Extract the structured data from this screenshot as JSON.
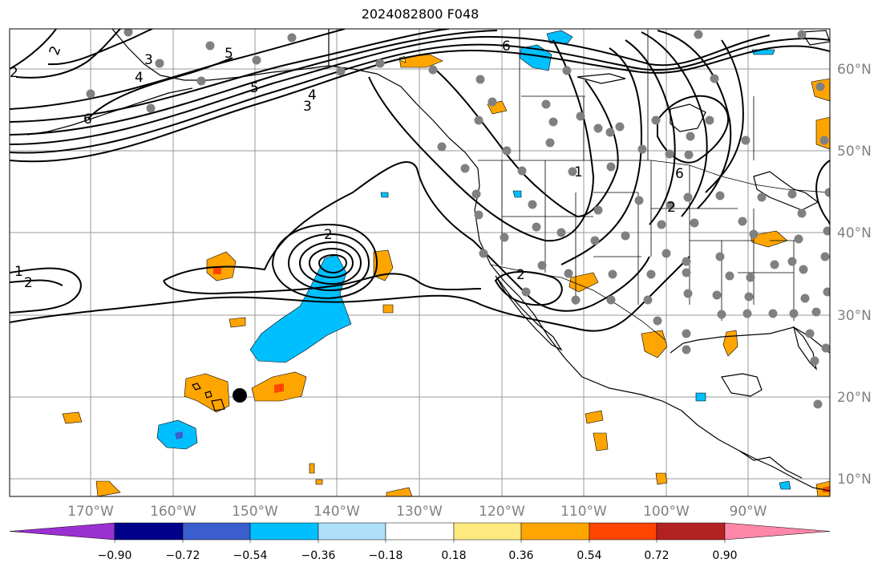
{
  "title": "2024082800 F048",
  "map": {
    "longitude_labels": [
      "170°W",
      "160°W",
      "150°W",
      "140°W",
      "130°W",
      "120°W",
      "110°W",
      "100°W",
      "90°W"
    ],
    "latitude_labels": [
      "60°N",
      "50°N",
      "40°N",
      "30°N",
      "20°N",
      "10°N"
    ],
    "contour_labels": [
      "2",
      "3",
      "4",
      "5",
      "6",
      "1",
      "2",
      "3",
      "4",
      "5",
      "6",
      "2",
      "6",
      "2",
      "2",
      "1",
      "2"
    ],
    "colors": {
      "ocean": "#ffffff",
      "land_outline": "#000000",
      "contour": "#000000",
      "grid": "#999999",
      "station_dot": "#808080",
      "marker": "#000000"
    }
  },
  "colorbar": {
    "tick_labels": [
      "−0.90",
      "−0.72",
      "−0.54",
      "−0.36",
      "−0.18",
      "0.18",
      "0.36",
      "0.54",
      "0.72",
      "0.90"
    ],
    "colors": [
      "#9b30d0",
      "#00008b",
      "#3a5fcd",
      "#00bfff",
      "#aee0fa",
      "#ffffff",
      "#ffea80",
      "#ffa500",
      "#ff4500",
      "#b22222",
      "#ff88aa"
    ]
  }
}
